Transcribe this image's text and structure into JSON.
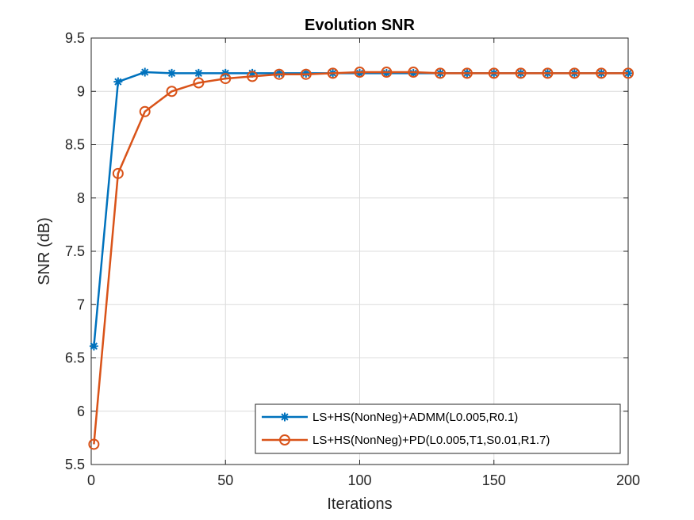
{
  "chart_data": {
    "type": "line",
    "title": "Evolution SNR",
    "xlabel": "Iterations",
    "ylabel": "SNR (dB)",
    "xlim": [
      0,
      200
    ],
    "ylim": [
      5.5,
      9.5
    ],
    "xticks": [
      0,
      50,
      100,
      150,
      200
    ],
    "yticks": [
      5.5,
      6,
      6.5,
      7,
      7.5,
      8,
      8.5,
      9,
      9.5
    ],
    "xtick_labels": [
      "0",
      "50",
      "100",
      "150",
      "200"
    ],
    "ytick_labels": [
      "5.5",
      "6",
      "6.5",
      "7",
      "7.5",
      "8",
      "8.5",
      "9",
      "9.5"
    ],
    "grid": true,
    "legend_position": "bottom-right",
    "x": [
      1,
      10,
      20,
      30,
      40,
      50,
      60,
      70,
      80,
      90,
      100,
      110,
      120,
      130,
      140,
      150,
      160,
      170,
      180,
      190,
      200
    ],
    "series": [
      {
        "name": "LS+HS(NonNeg)+ADMM(L0.005,R0.1)",
        "color": "#0072BD",
        "marker": "asterisk",
        "values": [
          6.61,
          9.09,
          9.18,
          9.17,
          9.17,
          9.17,
          9.17,
          9.17,
          9.17,
          9.17,
          9.17,
          9.17,
          9.17,
          9.17,
          9.17,
          9.17,
          9.17,
          9.17,
          9.17,
          9.17,
          9.17
        ]
      },
      {
        "name": "LS+HS(NonNeg)+PD(L0.005,T1,S0.01,R1.7)",
        "color": "#D95319",
        "marker": "circle",
        "values": [
          5.69,
          8.23,
          8.81,
          9.0,
          9.08,
          9.12,
          9.14,
          9.16,
          9.16,
          9.17,
          9.18,
          9.18,
          9.18,
          9.17,
          9.17,
          9.17,
          9.17,
          9.17,
          9.17,
          9.17,
          9.17
        ]
      }
    ]
  }
}
